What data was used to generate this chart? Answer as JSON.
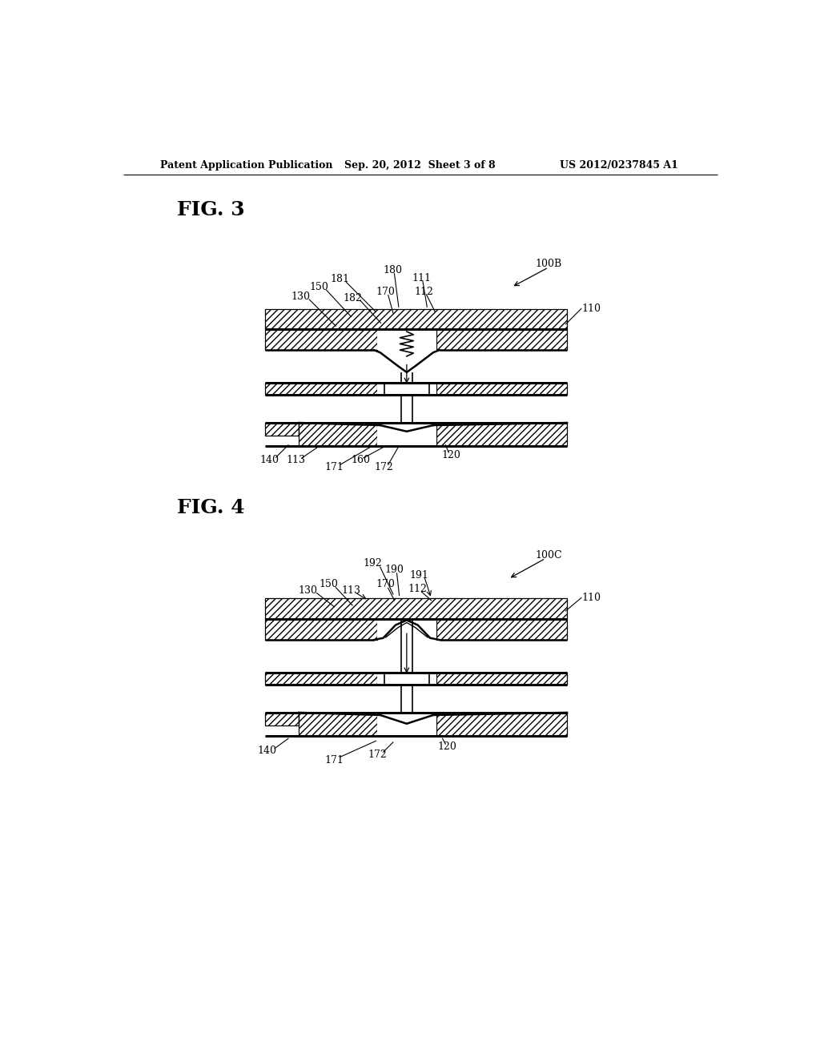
{
  "page_title_left": "Patent Application Publication",
  "page_title_center": "Sep. 20, 2012  Sheet 3 of 8",
  "page_title_right": "US 2012/0237845 A1",
  "fig3_label": "FIG. 3",
  "fig4_label": "FIG. 4",
  "bg_color": "#ffffff"
}
